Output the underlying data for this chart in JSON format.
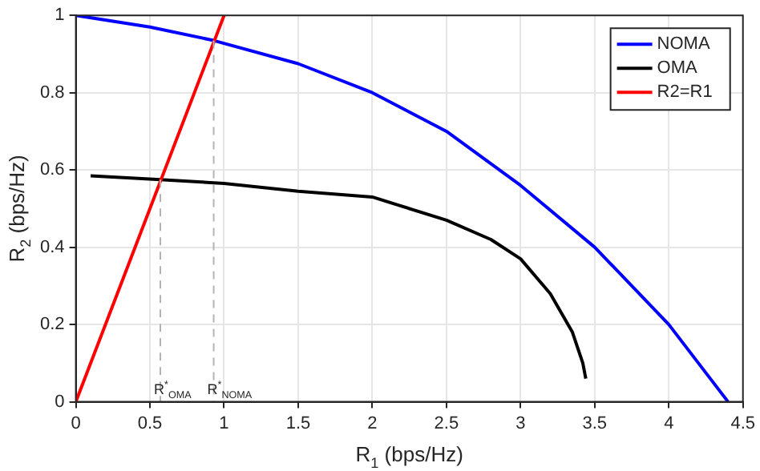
{
  "chart_data": {
    "type": "line",
    "xlabel": "R$_{1}$ (bps/Hz)",
    "ylabel": "R$_{2}$ (bps/Hz)",
    "xlim": [
      0,
      4.5
    ],
    "xticks": [
      0,
      0.5,
      1,
      1.5,
      2,
      2.5,
      3,
      3.5,
      4,
      4.5
    ],
    "ylim": [
      0,
      1
    ],
    "yticks": [
      0,
      0.2,
      0.4,
      0.6,
      0.8,
      1
    ],
    "grid": true,
    "legend": "top right",
    "marker": "none",
    "line_style": "solid",
    "series": [
      {
        "name": "NOMA",
        "color": "#0000ff",
        "x": [
          0,
          0.5,
          0.93,
          1.5,
          2,
          2.5,
          3,
          3.5,
          4,
          4.2,
          4.4
        ],
        "values": [
          1,
          0.97,
          0.935,
          0.875,
          0.8,
          0.7,
          0.56,
          0.4,
          0.2,
          0.1,
          0
        ]
      },
      {
        "name": "OMA",
        "color": "#000000",
        "x": [
          0.1,
          0.57,
          1,
          1.5,
          2,
          2.5,
          2.8,
          3,
          3.2,
          3.35,
          3.42,
          3.44
        ],
        "values": [
          0.585,
          0.575,
          0.565,
          0.545,
          0.53,
          0.47,
          0.42,
          0.37,
          0.28,
          0.18,
          0.1,
          0.06
        ]
      },
      {
        "name": "R2=R1",
        "color": "#ff0000",
        "x": [
          0,
          1
        ],
        "values": [
          0,
          1
        ]
      },
      {
        "color": "#b4b4b4",
        "line_style": "dashed",
        "x": [
          0.57,
          0.57
        ],
        "values": [
          0.575,
          0
        ]
      },
      {
        "color": "#b4b4b4",
        "line_style": "dashed",
        "x": [
          0.93,
          0.93
        ],
        "values": [
          0.935,
          0
        ]
      }
    ],
    "annotations": [
      {
        "text": "R$^{*}$$_{OMA}$",
        "x": 0.57,
        "y": 0
      },
      {
        "text": "R$^{*}$$_{NOMA}$",
        "x": 0.93,
        "y": 0
      }
    ]
  }
}
